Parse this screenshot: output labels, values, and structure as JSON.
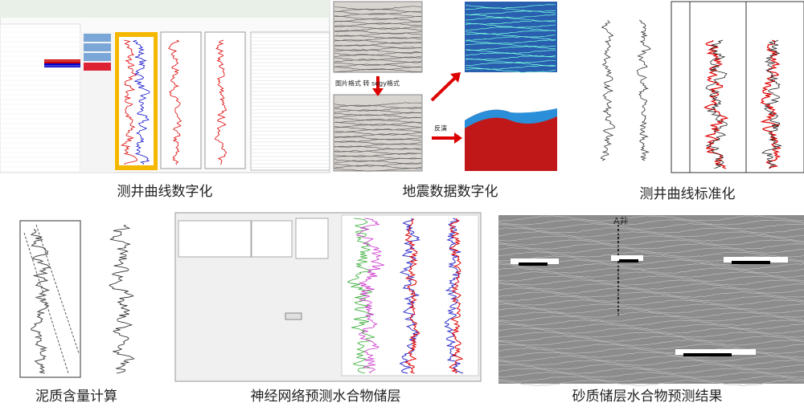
{
  "panels": [
    {
      "caption": "测井曲线数字化"
    },
    {
      "caption": "地震数据数字化",
      "labels": [
        "图片格式 转 segy格式",
        "反演"
      ]
    },
    {
      "caption": "测井曲线标准化"
    },
    {
      "caption": "泥质含量计算"
    },
    {
      "caption": "神经网络预测水合物储层"
    },
    {
      "caption": "砂质储层水合物预测结果",
      "labels": [
        "A井"
      ]
    }
  ]
}
